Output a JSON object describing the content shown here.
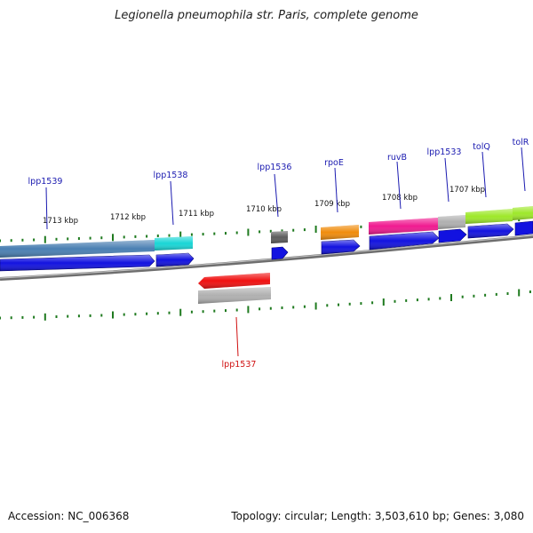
{
  "title": "Legionella pneumophila str. Paris, complete genome",
  "footer": {
    "accession": "Accession: NC_006368",
    "summary": "Topology: circular; Length: 3,503,610 bp; Genes: 3,080"
  },
  "colors": {
    "backbone": "#7a7a7a",
    "tick": "#1f7a1f",
    "cds": "#1010e0",
    "label_top": "#1a1ab0",
    "label_bottom": "#d01010"
  },
  "kbp_ticks": [
    "1713 kbp",
    "1712 kbp",
    "1711 kbp",
    "1710 kbp",
    "1709 kbp",
    "1708 kbp",
    "1707 kbp"
  ],
  "genes_top": [
    {
      "name": "lpp1539",
      "cog_color": "#4a7fb2"
    },
    {
      "name": "lpp1538",
      "cog_color": "#19d6d6"
    },
    {
      "name": "lpp1536",
      "cog_color": "#5c5c5c"
    },
    {
      "name": "rpoE",
      "cog_color": "#f08c0c"
    },
    {
      "name": "ruvB",
      "cog_color": "#f01a90"
    },
    {
      "name": "lpp1533",
      "cog_color": "#b0b0b0"
    },
    {
      "name": "tolQ",
      "cog_color": "#9ee82a"
    },
    {
      "name": "tolR",
      "cog_color": "#9ee82a"
    }
  ],
  "genes_bottom": [
    {
      "name": "lpp1537",
      "cog_color": "#f01010"
    }
  ]
}
